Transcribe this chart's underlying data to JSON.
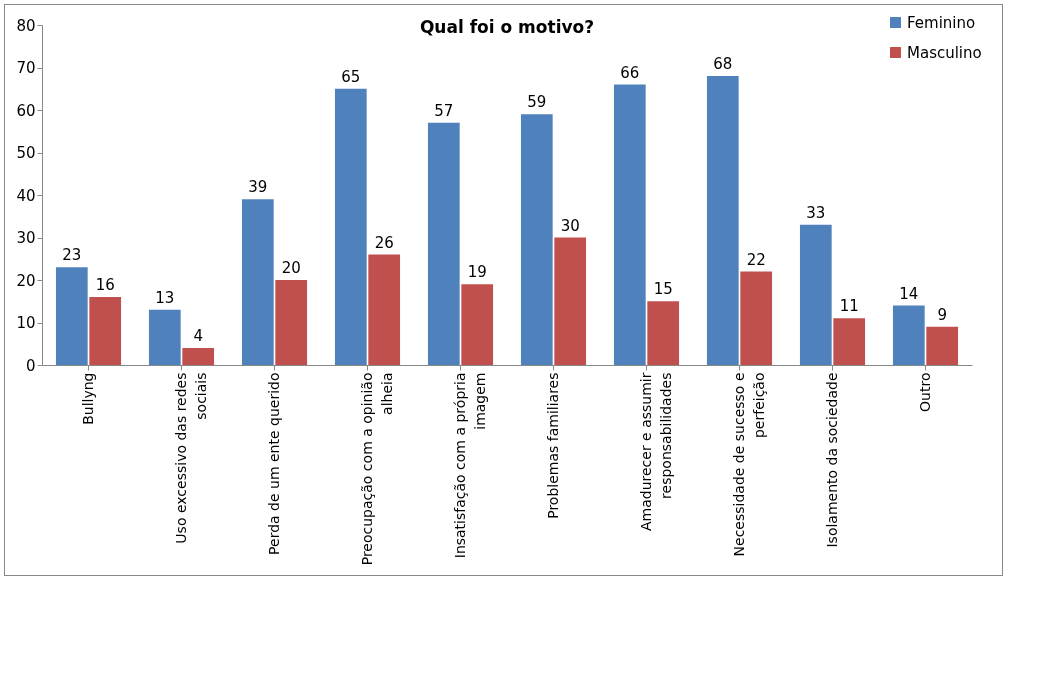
{
  "chart_data": {
    "type": "bar",
    "title": "Qual foi o motivo?",
    "categories": [
      "Bullyng",
      "Uso excessivo das redes sociais",
      "Perda de um ente querido",
      "Preocupação com a opinião alheia",
      "Insatisfação com a própria imagem",
      "Problemas familiares",
      "Amadurecer e assumir responsabilidades",
      "Necessidade de sucesso e perfeição",
      "Isolamento da sociedade",
      "Outro"
    ],
    "series": [
      {
        "name": "Feminino",
        "color": "#4f81bd",
        "values": [
          23,
          13,
          39,
          65,
          57,
          59,
          66,
          68,
          33,
          14
        ]
      },
      {
        "name": "Masculino",
        "color": "#c0504d",
        "values": [
          16,
          4,
          20,
          26,
          19,
          30,
          15,
          22,
          11,
          9
        ]
      }
    ],
    "ylim": [
      0,
      80
    ],
    "yticks": [
      0,
      10,
      20,
      30,
      40,
      50,
      60,
      70,
      80
    ],
    "grid": false,
    "legend": "top right",
    "data_labels": true
  }
}
